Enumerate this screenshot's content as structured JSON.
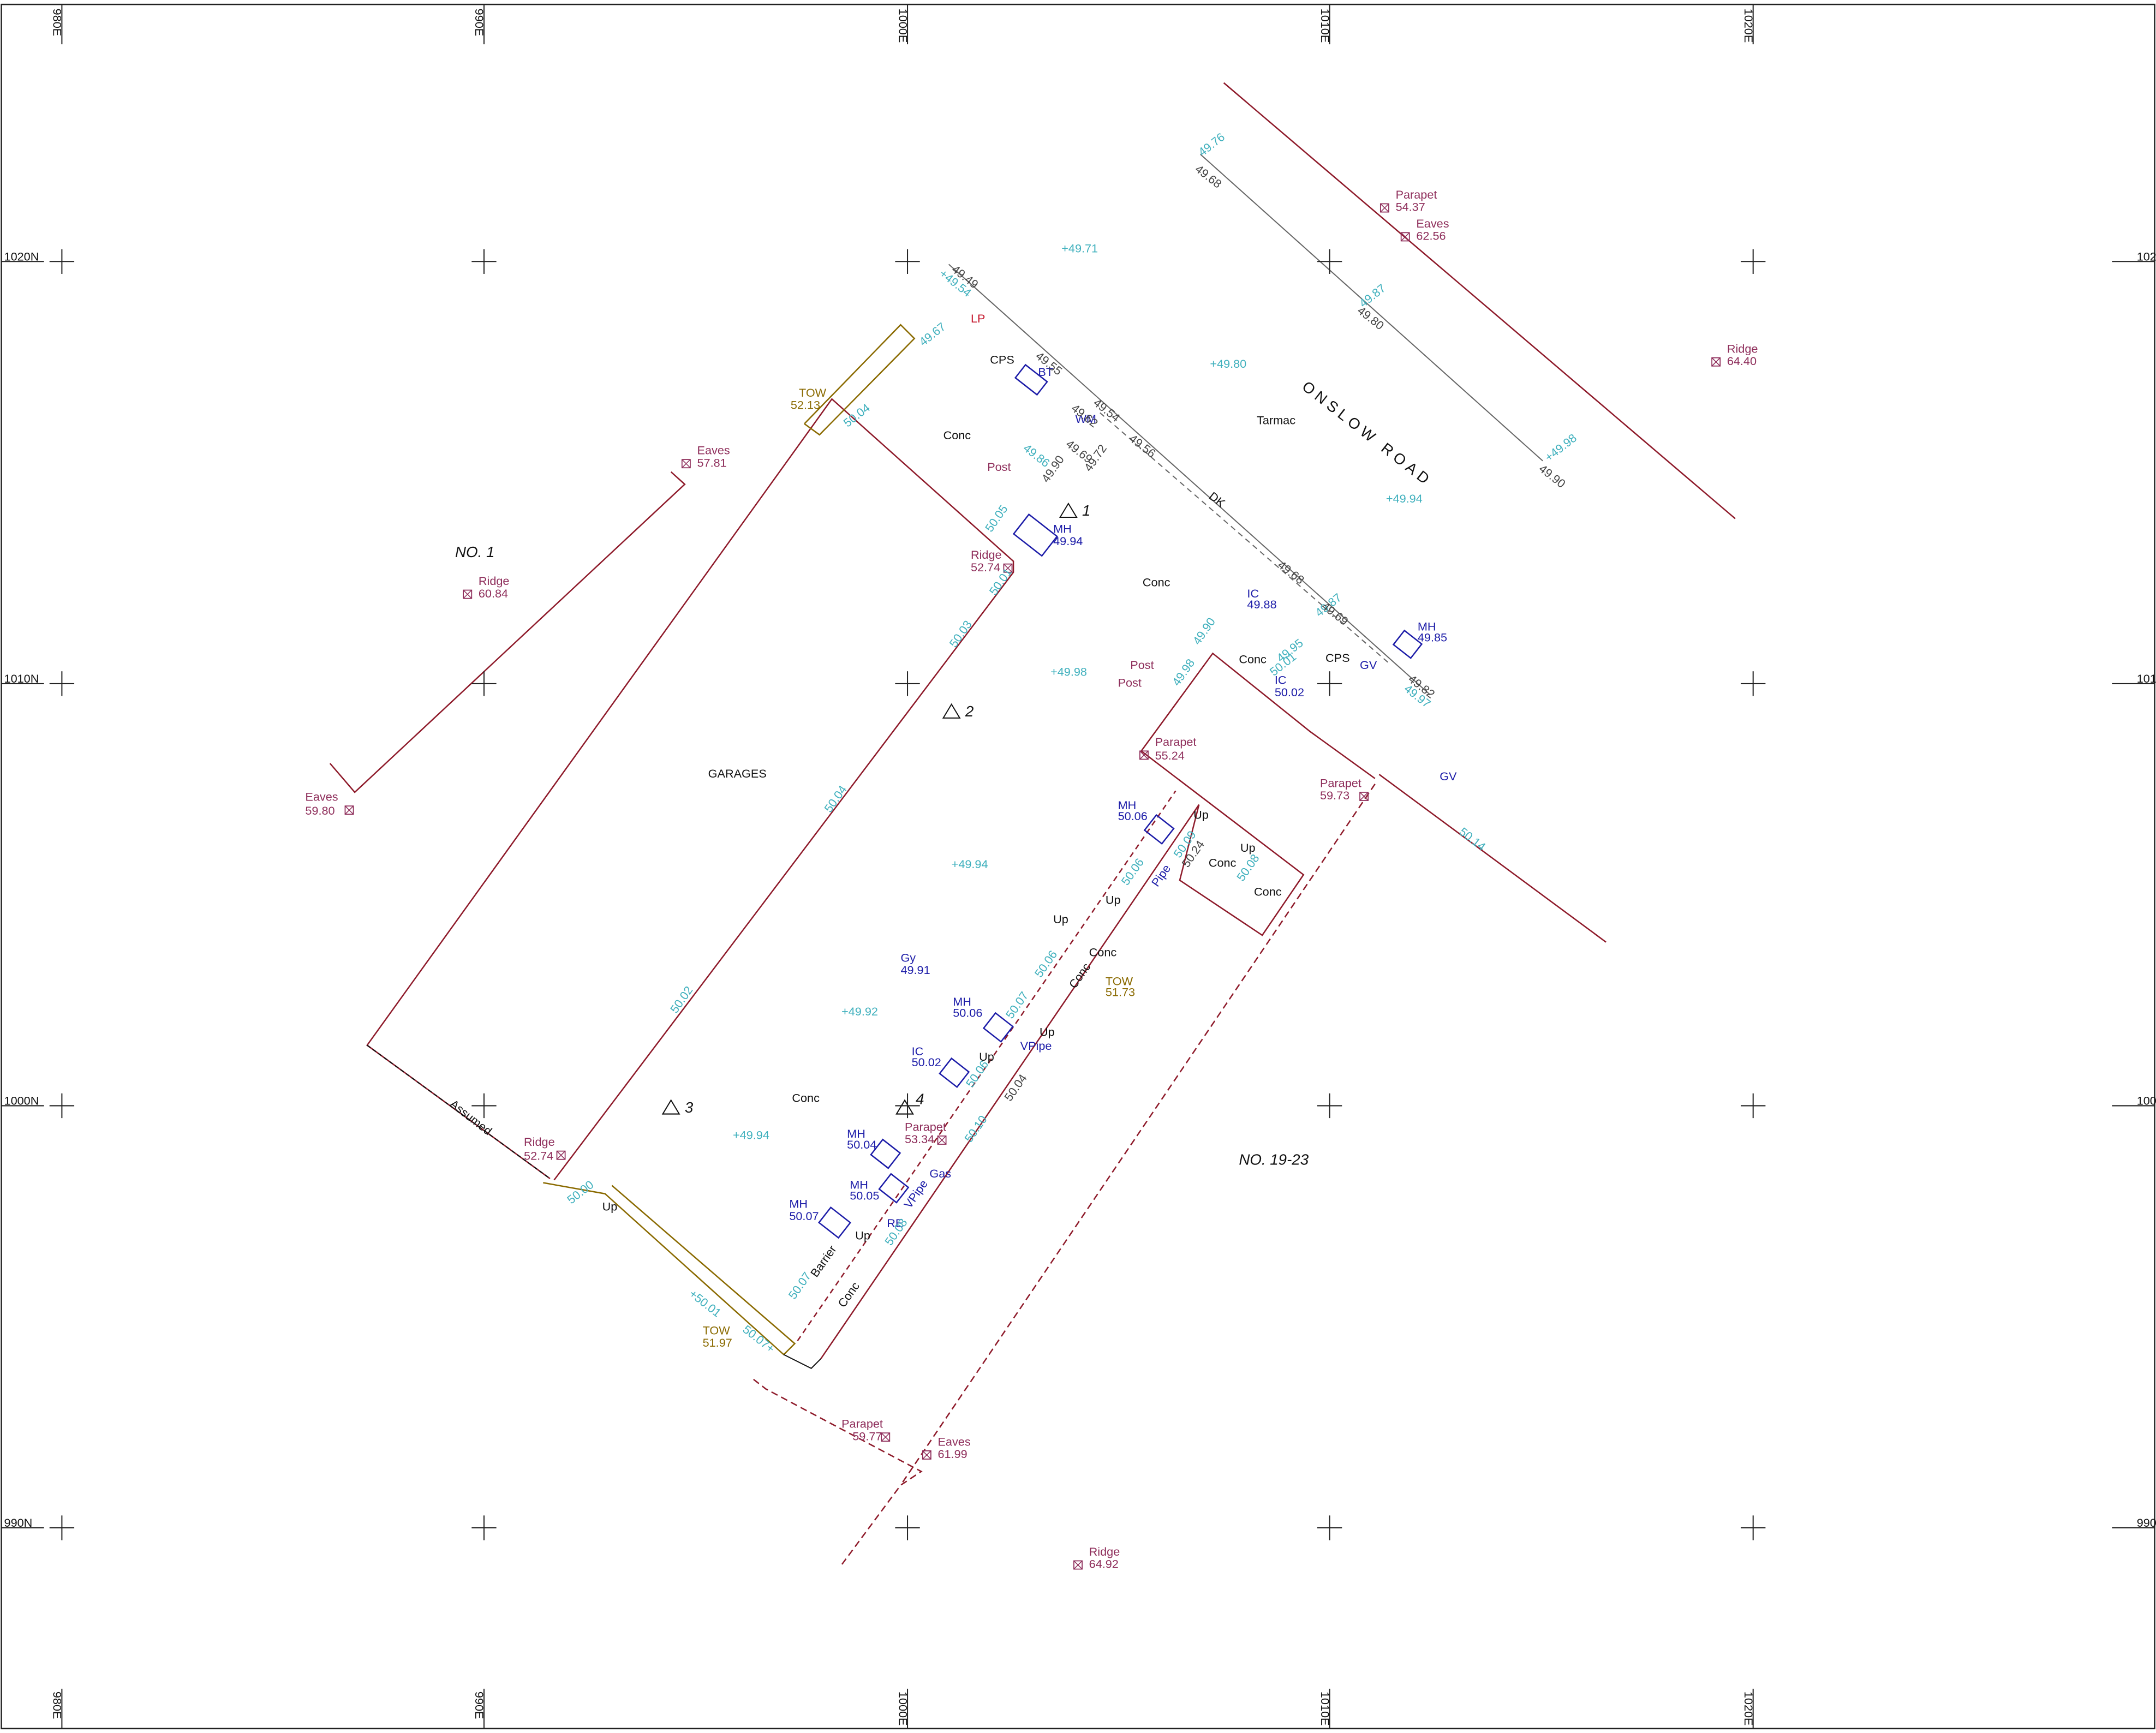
{
  "grid": {
    "x_labels": [
      "980E",
      "990E",
      "1000E",
      "1010E",
      "1020E"
    ],
    "y_labels": [
      "1020N",
      "1010N",
      "1000N",
      "990N"
    ]
  },
  "labels": [
    "ONSLOW ROAD",
    "Tarmac",
    "NO. 1",
    "GARAGES",
    "NO. 19-23",
    "Conc",
    "Conc",
    "Conc",
    "CPS",
    "CPS",
    "DK",
    "Assumed",
    "1",
    "2",
    "3",
    "4",
    "Parapet",
    "54.37",
    "Eaves",
    "62.56",
    "Ridge",
    "64.40",
    "Eaves",
    "57.81",
    "Ridge",
    "60.84",
    "Ridge",
    "52.74",
    "Eaves",
    "59.80",
    "Parapet",
    "55.24",
    "Parapet",
    "59.73",
    "Parapet",
    "53.34",
    "Ridge",
    "52.74",
    "Parapet",
    "59.77",
    "Eaves",
    "61.99",
    "Ridge",
    "64.92",
    "Post",
    "Post",
    "Post",
    "LP",
    "MH",
    "49.94",
    "BT",
    "WM",
    "IC",
    "49.88",
    "IC",
    "50.02",
    "MH",
    "49.85",
    "GV",
    "GV",
    "MH",
    "50.06",
    "Gy",
    "49.91",
    "MH",
    "50.06",
    "IC",
    "50.02",
    "MH",
    "50.04",
    "MH",
    "50.05",
    "MH",
    "50.07",
    "VPipe",
    "VPipe",
    "Pipe",
    "Gas",
    "RE",
    "TOW",
    "52.13",
    "TOW",
    "51.73",
    "TOW",
    "51.97",
    "Up",
    "Up",
    "Up",
    "Up",
    "Up",
    "Up",
    "Up",
    "Up",
    "Conc",
    "Conc",
    "Conc",
    "Conc",
    "Conc",
    "Barrier",
    "Conc",
    "+49.71",
    "+49.80",
    "+49.94",
    "+49.98",
    "+49.94",
    "+49.92",
    "+49.94",
    "49.76",
    "+49.54",
    "49.87",
    "+49.98",
    "49.67",
    "50.04",
    "49.86",
    "50.05",
    "50.01",
    "50.03",
    "50.04",
    "50.02",
    "50.00",
    "+50.01",
    "50.07+",
    "50.07",
    "50.14",
    "49.90",
    "49.98",
    "49.95",
    "50.01",
    "49.87",
    "49.97",
    "50.09",
    "50.06",
    "50.08",
    "50.06",
    "50.07",
    "50.10",
    "50.08",
    "50.06",
    "49.49",
    "49.55",
    "49.54",
    "49.56",
    "49.62",
    "49.69",
    "49.72",
    "49.68",
    "49.69",
    "49.82",
    "49.68",
    "49.80",
    "49.90",
    "49.90",
    "50.24",
    "50.04"
  ]
}
